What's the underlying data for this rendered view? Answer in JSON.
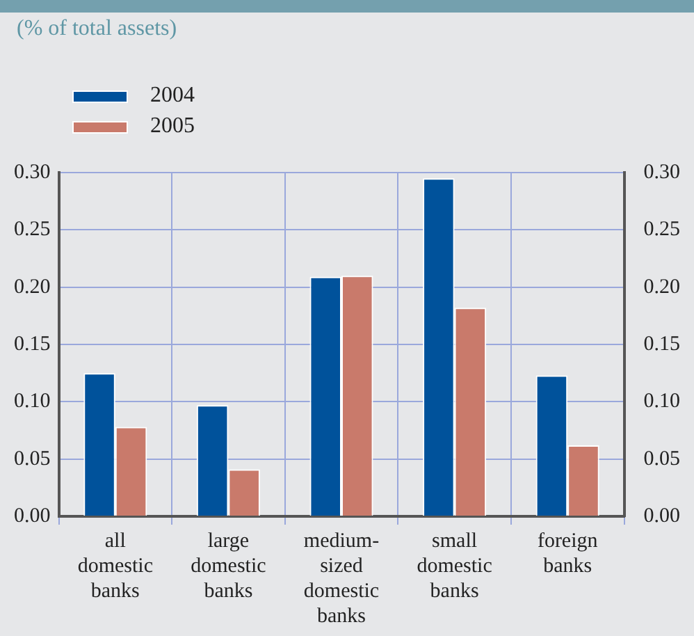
{
  "chart_data": {
    "type": "bar",
    "subtitle": "(% of total assets)",
    "categories": [
      "all domestic banks",
      "large domestic banks",
      "medium-sized domestic banks",
      "small domestic banks",
      "foreign banks"
    ],
    "series": [
      {
        "name": "2004",
        "color": "#00529b",
        "values": [
          0.125,
          0.097,
          0.209,
          0.295,
          0.123
        ]
      },
      {
        "name": "2005",
        "color": "#c97a6b",
        "values": [
          0.078,
          0.041,
          0.21,
          0.182,
          0.062
        ]
      }
    ],
    "ylim": [
      0,
      0.3
    ],
    "yticks": [
      {
        "value": 0,
        "label": "0.00"
      },
      {
        "value": 0.05,
        "label": "0.05"
      },
      {
        "value": 0.1,
        "label": "0.10"
      },
      {
        "value": 0.15,
        "label": "0.15"
      },
      {
        "value": 0.2,
        "label": "0.20"
      },
      {
        "value": 0.25,
        "label": "0.25"
      },
      {
        "value": 0.3,
        "label": "0.30"
      }
    ],
    "y2lim": [
      0,
      0.3
    ],
    "y2ticks": [
      {
        "value": 0,
        "label": "0.00"
      },
      {
        "value": 0.05,
        "label": "0.05"
      },
      {
        "value": 0.1,
        "label": "0.10"
      },
      {
        "value": 0.15,
        "label": "0.15"
      },
      {
        "value": 0.2,
        "label": "0.20"
      },
      {
        "value": 0.25,
        "label": "0.25"
      },
      {
        "value": 0.3,
        "label": "0.30"
      }
    ],
    "grid": true,
    "legend": "top left"
  }
}
